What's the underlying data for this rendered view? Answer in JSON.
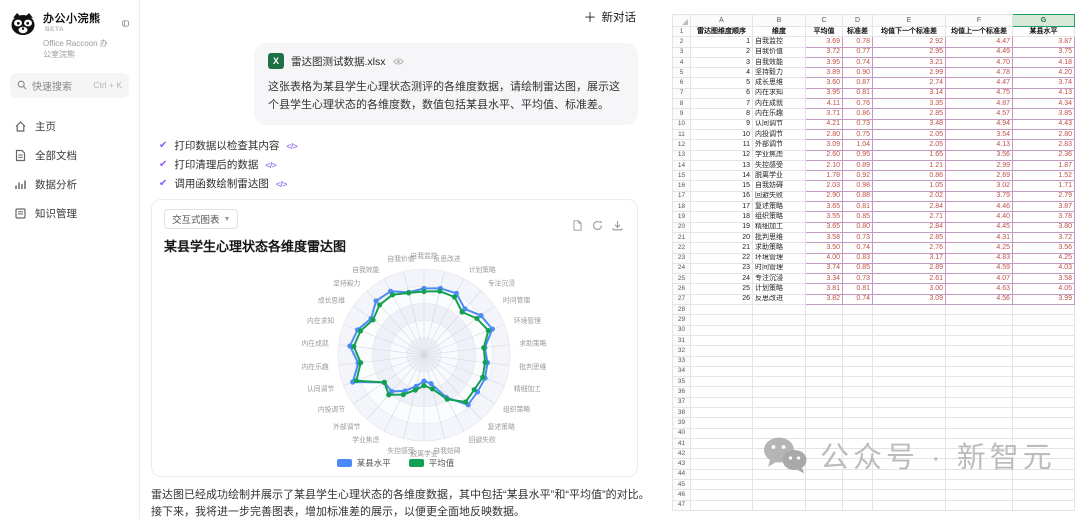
{
  "colors": {
    "accent_purple": "#8b5cf6",
    "series_blue": "#4c8bf5",
    "series_green": "#12a150",
    "excel_green": "#1e7145",
    "data_text": "#bf4d43",
    "data_border": "#c39ac3"
  },
  "sidebar": {
    "app_title": "办公小浣熊",
    "beta_tag": "BETA",
    "app_subtitle": "Office Raccoon 办公室浣熊",
    "search_placeholder": "快速搜索",
    "search_shortcut": "Ctrl + K",
    "items": [
      {
        "label": "主页",
        "icon": "home-icon"
      },
      {
        "label": "全部文档",
        "icon": "document-icon"
      },
      {
        "label": "数据分析",
        "icon": "chart-icon"
      },
      {
        "label": "知识管理",
        "icon": "book-icon"
      }
    ]
  },
  "chat": {
    "new_chat_label": "新对话",
    "attachment_filename": "雷达图测试数据.xlsx",
    "user_message": "这张表格为某县学生心理状态测评的各维度数据，请绘制雷达图，展示这个县学生心理状态的各维度数，数值包括某县水平、平均值、标准差。",
    "steps": [
      "打印数据以检查其内容",
      "打印清理后的数据",
      "调用函数绘制雷达图"
    ],
    "step_code_glyph": "</>",
    "chart_card": {
      "dropdown_label": "交互式图表",
      "title": "某县学生心理状态各维度雷达图"
    },
    "assistant_message": "雷达图已经成功绘制并展示了某县学生心理状态的各维度数据，其中包括“某县水平”和“平均值”的对比。接下来，我将进一步完善图表，增加标准差的展示，以便更全面地反映数据。"
  },
  "chart_data": {
    "type": "radar",
    "title": "某县学生心理状态各维度雷达图",
    "categories": [
      "自我监控",
      "自我价值",
      "自我效能",
      "坚持毅力",
      "成长思维",
      "内在求知",
      "内在成就",
      "内在乐趣",
      "认同调节",
      "内投调节",
      "外部调节",
      "学业焦虑",
      "失控感受",
      "脱离学业",
      "自我妨碍",
      "回避失败",
      "复述策略",
      "组织策略",
      "精细加工",
      "批判思维",
      "求助策略",
      "环境管理",
      "时间管理",
      "专注沉浸",
      "计划策略",
      "反思改进"
    ],
    "series": [
      {
        "name": "某县水平",
        "color": "#4c8bf5",
        "values": [
          3.87,
          3.75,
          4.18,
          4.2,
          3.74,
          4.13,
          4.34,
          3.85,
          4.43,
          2.8,
          2.83,
          2.36,
          1.87,
          1.52,
          1.71,
          2.79,
          3.87,
          3.78,
          3.8,
          3.72,
          3.56,
          4.25,
          4.03,
          3.58,
          4.05,
          3.99
        ]
      },
      {
        "name": "平均值",
        "color": "#12a150",
        "values": [
          3.69,
          3.72,
          3.95,
          3.89,
          3.6,
          3.95,
          4.11,
          3.71,
          4.21,
          2.8,
          3.09,
          2.6,
          2.1,
          1.78,
          2.03,
          2.9,
          3.65,
          3.55,
          3.65,
          3.58,
          3.5,
          4.0,
          3.74,
          3.34,
          3.81,
          3.82
        ]
      }
    ],
    "rlim": [
      0,
      5
    ],
    "grid": true,
    "legend_position": "bottom",
    "direction": "counterclockwise-from-top"
  },
  "spreadsheet": {
    "column_letters": [
      "A",
      "B",
      "C",
      "D",
      "E",
      "F",
      "G"
    ],
    "selected_column": "G",
    "headers": [
      "雷达图维度顺序",
      "维度",
      "平均值",
      "标准差",
      "均值下一个标准差",
      "均值上一个标准差",
      "某县水平"
    ],
    "rows": [
      [
        1,
        "自我监控",
        "3.69",
        "0.78",
        "2.92",
        "4.47",
        "3.87"
      ],
      [
        2,
        "自我价值",
        "3.72",
        "0.77",
        "2.95",
        "4.49",
        "3.75"
      ],
      [
        3,
        "自我效能",
        "3.95",
        "0.74",
        "3.21",
        "4.70",
        "4.18"
      ],
      [
        4,
        "坚持毅力",
        "3.89",
        "0.90",
        "2.99",
        "4.78",
        "4.20"
      ],
      [
        5,
        "成长思维",
        "3.60",
        "0.87",
        "2.74",
        "4.47",
        "3.74"
      ],
      [
        6,
        "内在求知",
        "3.95",
        "0.81",
        "3.14",
        "4.75",
        "4.13"
      ],
      [
        7,
        "内在成就",
        "4.11",
        "0.76",
        "3.35",
        "4.87",
        "4.34"
      ],
      [
        8,
        "内在乐趣",
        "3.71",
        "0.86",
        "2.85",
        "4.57",
        "3.85"
      ],
      [
        9,
        "认同调节",
        "4.21",
        "0.73",
        "3.48",
        "4.94",
        "4.43"
      ],
      [
        10,
        "内投调节",
        "2.80",
        "0.75",
        "2.05",
        "3.54",
        "2.80"
      ],
      [
        11,
        "外部调节",
        "3.09",
        "1.04",
        "2.05",
        "4.13",
        "2.83"
      ],
      [
        12,
        "学业焦虑",
        "2.60",
        "0.95",
        "1.65",
        "3.56",
        "2.36"
      ],
      [
        13,
        "失控感受",
        "2.10",
        "0.89",
        "1.21",
        "2.99",
        "1.87"
      ],
      [
        14,
        "脱离学业",
        "1.78",
        "0.92",
        "0.86",
        "2.69",
        "1.52"
      ],
      [
        15,
        "自我妨碍",
        "2.03",
        "0.98",
        "1.05",
        "3.02",
        "1.71"
      ],
      [
        16,
        "回避失败",
        "2.90",
        "0.88",
        "2.02",
        "3.79",
        "2.79"
      ],
      [
        17,
        "复述策略",
        "3.65",
        "0.81",
        "2.84",
        "4.46",
        "3.87"
      ],
      [
        18,
        "组织策略",
        "3.55",
        "0.85",
        "2.71",
        "4.40",
        "3.78"
      ],
      [
        19,
        "精细加工",
        "3.65",
        "0.80",
        "2.84",
        "4.45",
        "3.80"
      ],
      [
        20,
        "批判思维",
        "3.58",
        "0.73",
        "2.85",
        "4.31",
        "3.72"
      ],
      [
        21,
        "求助策略",
        "3.50",
        "0.74",
        "2.76",
        "4.25",
        "3.56"
      ],
      [
        22,
        "环境管理",
        "4.00",
        "0.83",
        "3.17",
        "4.83",
        "4.25"
      ],
      [
        23,
        "时间管理",
        "3.74",
        "0.85",
        "2.89",
        "4.59",
        "4.03"
      ],
      [
        24,
        "专注沉浸",
        "3.34",
        "0.73",
        "2.61",
        "4.07",
        "3.58"
      ],
      [
        25,
        "计划策略",
        "3.81",
        "0.81",
        "3.00",
        "4.63",
        "4.05"
      ],
      [
        26,
        "反思改进",
        "3.82",
        "0.74",
        "3.09",
        "4.56",
        "3.99"
      ]
    ],
    "total_visible_rows": 47
  },
  "watermark": {
    "text": "公众号 · 新智元"
  }
}
